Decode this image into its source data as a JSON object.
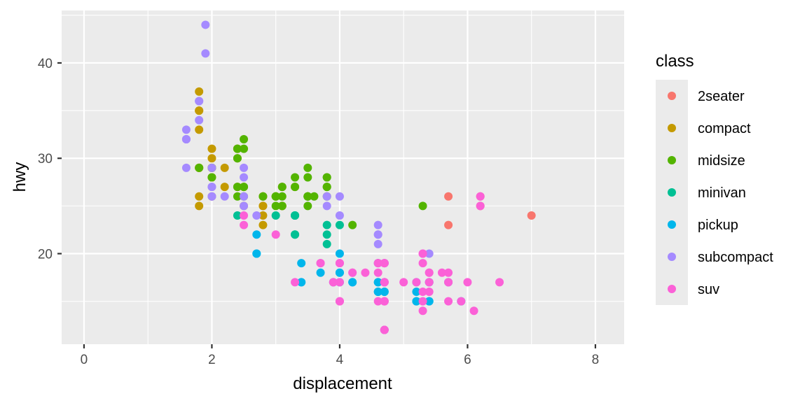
{
  "chart_data": {
    "type": "scatter",
    "title": "",
    "xlabel": "displacement",
    "ylabel": "hwy",
    "xlim": [
      -0.35,
      8.45
    ],
    "ylim": [
      10.5,
      45.5
    ],
    "x_ticks": [
      0,
      2,
      4,
      6,
      8
    ],
    "x_tick_labels": [
      "0",
      "2",
      "4",
      "6",
      "8"
    ],
    "y_ticks": [
      20,
      30,
      40
    ],
    "y_tick_labels": [
      "20",
      "30",
      "40"
    ],
    "grid": true,
    "legend_title": "class",
    "legend_position": "right",
    "series": [
      {
        "name": "2seater",
        "color": "#F8766D",
        "points": [
          [
            5.7,
            26
          ],
          [
            5.7,
            23
          ],
          [
            6.2,
            26
          ],
          [
            6.2,
            25
          ],
          [
            7.0,
            24
          ]
        ]
      },
      {
        "name": "compact",
        "color": "#C49A00",
        "points": [
          [
            1.8,
            29
          ],
          [
            1.8,
            29
          ],
          [
            2.0,
            31
          ],
          [
            2.0,
            30
          ],
          [
            2.8,
            26
          ],
          [
            2.8,
            26
          ],
          [
            3.1,
            27
          ],
          [
            1.8,
            26
          ],
          [
            1.8,
            25
          ],
          [
            2.0,
            28
          ],
          [
            2.0,
            29
          ],
          [
            2.8,
            25
          ],
          [
            2.8,
            25
          ],
          [
            3.1,
            25
          ],
          [
            3.1,
            25
          ],
          [
            2.2,
            27
          ],
          [
            2.2,
            29
          ],
          [
            2.4,
            31
          ],
          [
            2.4,
            31
          ],
          [
            3.0,
            26
          ],
          [
            3.0,
            26
          ],
          [
            3.3,
            27
          ],
          [
            1.8,
            33
          ],
          [
            1.8,
            35
          ],
          [
            1.8,
            37
          ],
          [
            1.8,
            35
          ],
          [
            1.8,
            29
          ],
          [
            2.0,
            26
          ],
          [
            2.0,
            29
          ],
          [
            2.0,
            29
          ],
          [
            2.0,
            28
          ],
          [
            2.0,
            29
          ],
          [
            2.8,
            24
          ],
          [
            2.8,
            23
          ],
          [
            2.5,
            27
          ],
          [
            2.5,
            25
          ],
          [
            2.4,
            30
          ],
          [
            2.4,
            27
          ]
        ]
      },
      {
        "name": "midsize",
        "color": "#53B400",
        "points": [
          [
            2.8,
            26
          ],
          [
            3.1,
            26
          ],
          [
            4.2,
            23
          ],
          [
            2.4,
            30
          ],
          [
            2.4,
            31
          ],
          [
            3.1,
            27
          ],
          [
            3.5,
            26
          ],
          [
            3.6,
            26
          ],
          [
            2.4,
            27
          ],
          [
            3.0,
            25
          ],
          [
            3.3,
            27
          ],
          [
            3.3,
            28
          ],
          [
            3.8,
            26
          ],
          [
            3.8,
            27
          ],
          [
            3.5,
            26
          ],
          [
            3.8,
            28
          ],
          [
            2.5,
            32
          ],
          [
            2.5,
            31
          ],
          [
            2.5,
            27
          ],
          [
            3.5,
            29
          ],
          [
            3.5,
            26
          ],
          [
            3.0,
            26
          ],
          [
            1.8,
            29
          ],
          [
            2.0,
            28
          ],
          [
            2.0,
            29
          ],
          [
            3.5,
            25
          ],
          [
            5.3,
            25
          ],
          [
            2.4,
            26
          ],
          [
            2.5,
            26
          ],
          [
            3.0,
            26
          ],
          [
            3.1,
            25
          ],
          [
            3.8,
            28
          ],
          [
            3.8,
            27
          ],
          [
            3.5,
            28
          ],
          [
            3.5,
            26
          ]
        ]
      },
      {
        "name": "minivan",
        "color": "#00C094",
        "points": [
          [
            2.4,
            24
          ],
          [
            3.0,
            24
          ],
          [
            3.3,
            22
          ],
          [
            3.3,
            22
          ],
          [
            3.3,
            24
          ],
          [
            3.3,
            24
          ],
          [
            3.3,
            24
          ],
          [
            3.8,
            22
          ],
          [
            3.8,
            21
          ],
          [
            3.8,
            23
          ],
          [
            4.0,
            23
          ]
        ]
      },
      {
        "name": "pickup",
        "color": "#00B6EB",
        "points": [
          [
            2.7,
            20
          ],
          [
            2.7,
            20
          ],
          [
            2.7,
            22
          ],
          [
            3.4,
            17
          ],
          [
            3.4,
            19
          ],
          [
            3.7,
            18
          ],
          [
            4.0,
            17
          ],
          [
            4.0,
            20
          ],
          [
            4.0,
            18
          ],
          [
            4.2,
            17
          ],
          [
            4.6,
            17
          ],
          [
            4.6,
            16
          ],
          [
            4.7,
            12
          ],
          [
            4.7,
            16
          ],
          [
            5.2,
            16
          ],
          [
            5.2,
            15
          ],
          [
            5.2,
            17
          ],
          [
            5.7,
            17
          ],
          [
            5.9,
            15
          ],
          [
            3.9,
            17
          ],
          [
            4.7,
            17
          ],
          [
            4.7,
            16
          ],
          [
            5.2,
            15
          ],
          [
            5.4,
            17
          ],
          [
            5.4,
            15
          ],
          [
            4.6,
            19
          ],
          [
            4.7,
            19
          ],
          [
            4.0,
            18
          ],
          [
            4.2,
            17
          ],
          [
            4.6,
            17
          ],
          [
            4.6,
            16
          ],
          [
            5.4,
            15
          ],
          [
            5.4,
            17
          ],
          [
            3.4,
            17
          ]
        ]
      },
      {
        "name": "subcompact",
        "color": "#A58AFF",
        "points": [
          [
            1.6,
            33
          ],
          [
            1.6,
            32
          ],
          [
            1.6,
            32
          ],
          [
            1.6,
            29
          ],
          [
            1.6,
            32
          ],
          [
            1.8,
            34
          ],
          [
            1.8,
            36
          ],
          [
            1.8,
            36
          ],
          [
            2.0,
            29
          ],
          [
            2.0,
            26
          ],
          [
            2.0,
            27
          ],
          [
            1.9,
            44
          ],
          [
            1.9,
            41
          ],
          [
            2.0,
            26
          ],
          [
            2.0,
            27
          ],
          [
            2.2,
            26
          ],
          [
            2.5,
            25
          ],
          [
            2.5,
            26
          ],
          [
            2.5,
            29
          ],
          [
            2.5,
            28
          ],
          [
            2.7,
            24
          ],
          [
            3.8,
            26
          ],
          [
            3.8,
            25
          ],
          [
            4.0,
            26
          ],
          [
            4.0,
            24
          ],
          [
            4.6,
            21
          ],
          [
            4.6,
            22
          ],
          [
            4.6,
            23
          ],
          [
            4.6,
            22
          ],
          [
            5.4,
            20
          ]
        ]
      },
      {
        "name": "suv",
        "color": "#FB61D7",
        "points": [
          [
            5.3,
            20
          ],
          [
            5.3,
            15
          ],
          [
            5.3,
            20
          ],
          [
            5.7,
            17
          ],
          [
            6.0,
            17
          ],
          [
            5.7,
            18
          ],
          [
            5.7,
            15
          ],
          [
            6.2,
            26
          ],
          [
            6.2,
            25
          ],
          [
            4.7,
            19
          ],
          [
            4.7,
            17
          ],
          [
            4.7,
            12
          ],
          [
            5.2,
            17
          ],
          [
            5.7,
            17
          ],
          [
            5.9,
            15
          ],
          [
            4.7,
            12
          ],
          [
            4.7,
            17
          ],
          [
            4.7,
            15
          ],
          [
            4.0,
            17
          ],
          [
            4.0,
            19
          ],
          [
            4.6,
            15
          ],
          [
            5.0,
            17
          ],
          [
            4.2,
            18
          ],
          [
            4.2,
            18
          ],
          [
            4.6,
            19
          ],
          [
            5.4,
            17
          ],
          [
            5.4,
            18
          ],
          [
            6.5,
            17
          ],
          [
            4.4,
            18
          ],
          [
            4.0,
            15
          ],
          [
            4.7,
            17
          ],
          [
            4.7,
            19
          ],
          [
            3.7,
            19
          ],
          [
            3.9,
            17
          ],
          [
            4.7,
            19
          ],
          [
            4.6,
            19
          ],
          [
            5.3,
            14
          ],
          [
            4.0,
            19
          ],
          [
            4.7,
            17
          ],
          [
            4.0,
            15
          ],
          [
            4.6,
            18
          ],
          [
            5.4,
            18
          ],
          [
            5.4,
            16
          ],
          [
            5.4,
            17
          ],
          [
            4.7,
            15
          ],
          [
            6.1,
            14
          ],
          [
            5.3,
            19
          ],
          [
            5.6,
            18
          ],
          [
            3.3,
            17
          ],
          [
            2.5,
            23
          ],
          [
            2.5,
            24
          ],
          [
            3.0,
            22
          ],
          [
            3.7,
            19
          ],
          [
            4.7,
            12
          ],
          [
            4.7,
            15
          ],
          [
            3.9,
            17
          ],
          [
            5.3,
            16
          ]
        ]
      }
    ]
  }
}
